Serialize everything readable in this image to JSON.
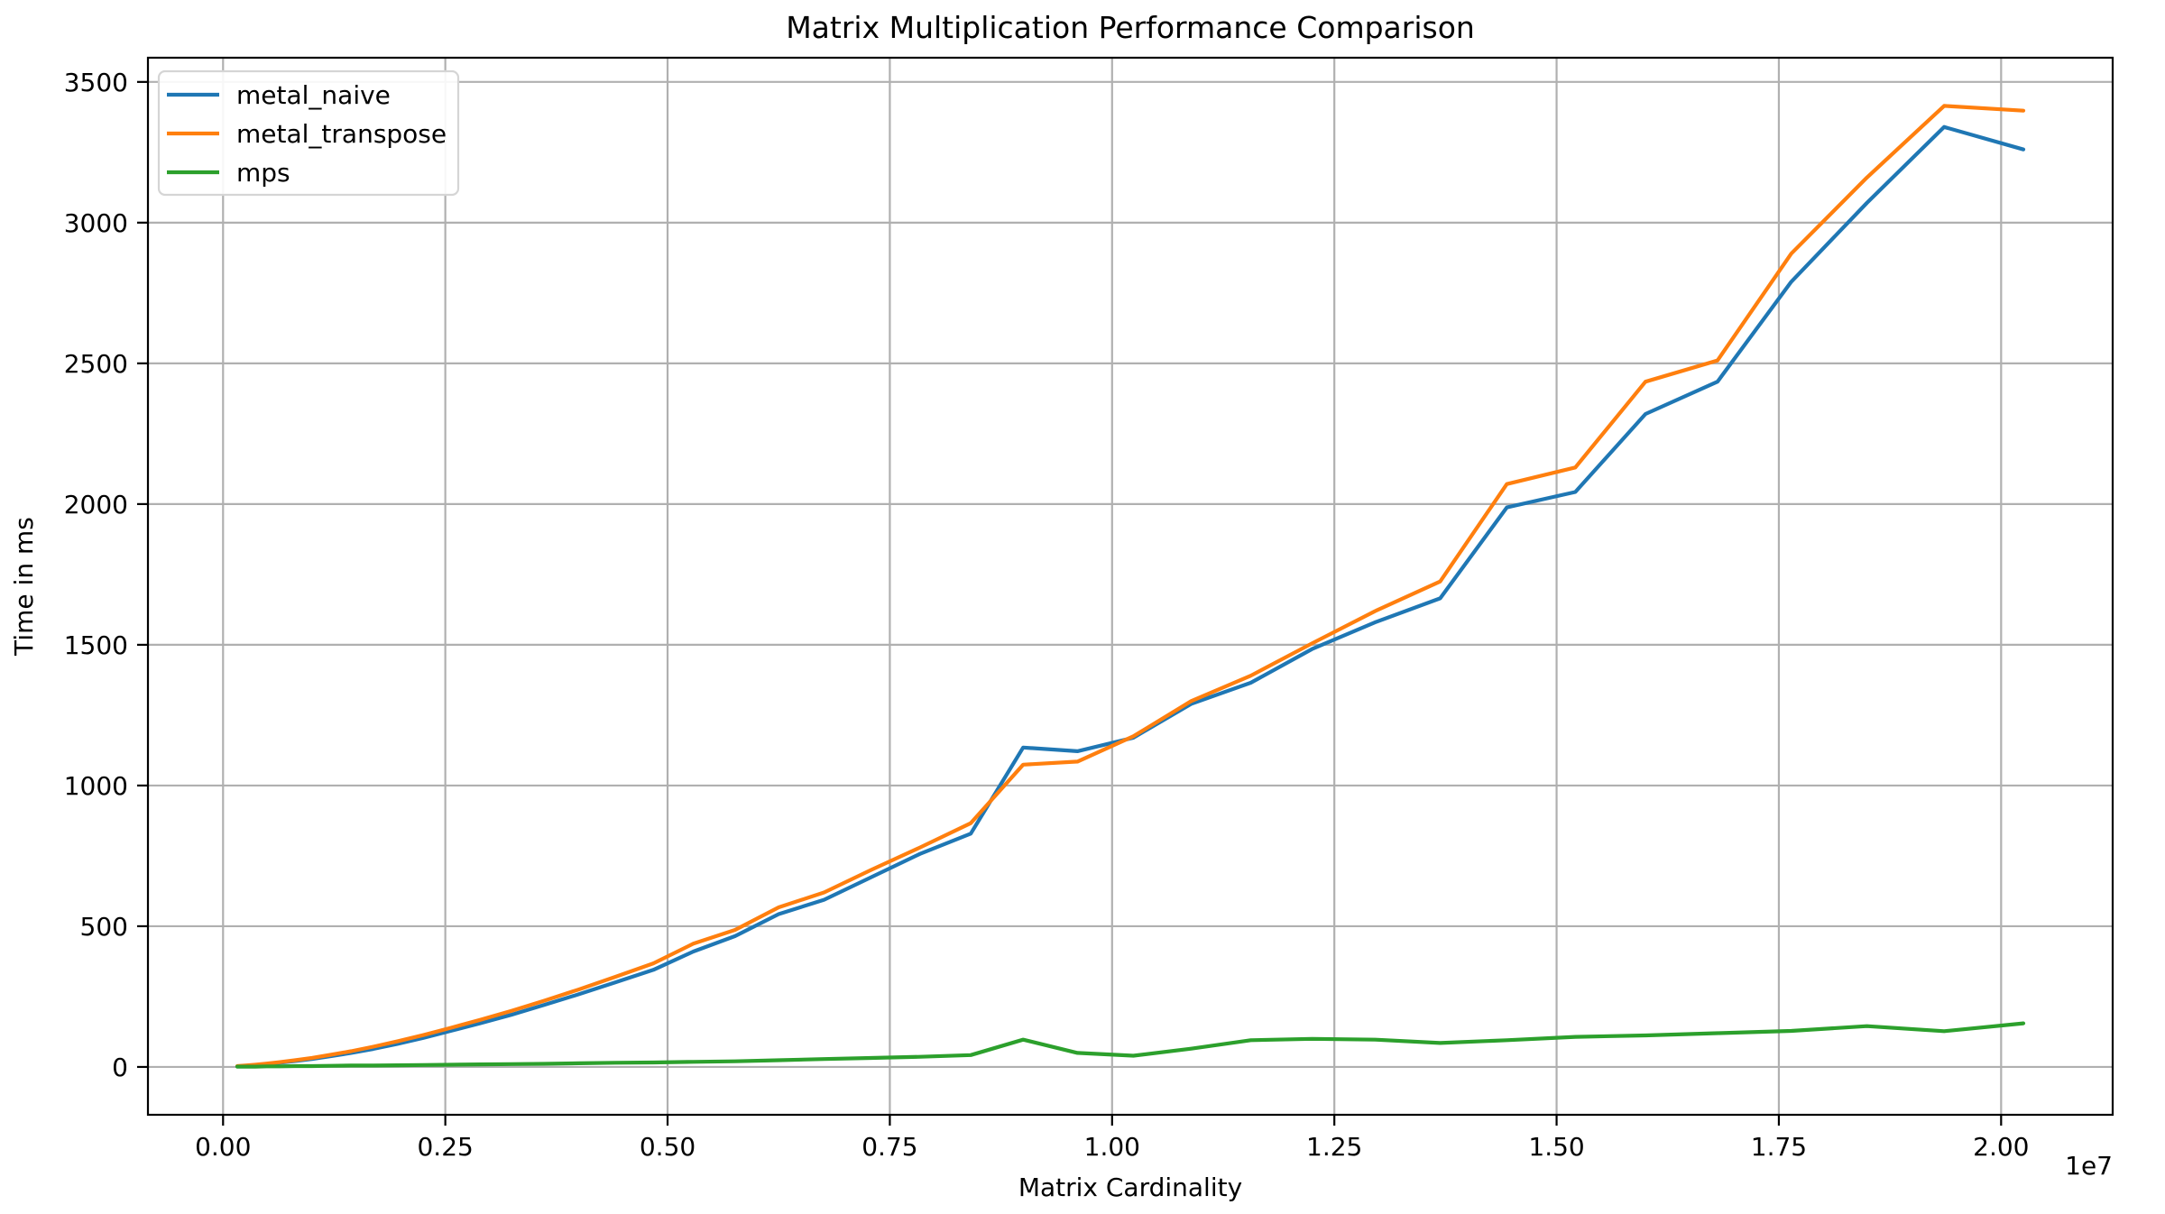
{
  "chart_data": {
    "type": "line",
    "title": "Matrix Multiplication Performance Comparison",
    "xlabel": "Matrix Cardinality",
    "ylabel": "Time in ms",
    "x_offset_label": "1e7",
    "grid": true,
    "legend_position": "upper left",
    "xlim": [
      -845000,
      21255000
    ],
    "ylim": [
      -170,
      3586
    ],
    "x_ticks": [
      0,
      2500000,
      5000000,
      7500000,
      10000000,
      12500000,
      15000000,
      17500000,
      20000000
    ],
    "x_tick_labels": [
      "0.00",
      "0.25",
      "0.50",
      "0.75",
      "1.00",
      "1.25",
      "1.50",
      "1.75",
      "2.00"
    ],
    "y_ticks": [
      0,
      500,
      1000,
      1500,
      2000,
      2500,
      3000,
      3500
    ],
    "y_tick_labels": [
      "0",
      "500",
      "1000",
      "1500",
      "2000",
      "2500",
      "3000",
      "3500"
    ],
    "x": [
      160000,
      250000,
      360000,
      490000,
      640000,
      810000,
      1000000,
      1210000,
      1440000,
      1690000,
      1960000,
      2250000,
      2560000,
      2890000,
      3240000,
      3610000,
      4000000,
      4410000,
      4840000,
      5290000,
      5760000,
      6250000,
      6760000,
      7290000,
      7840000,
      8410000,
      9000000,
      9610000,
      10240000,
      10890000,
      11560000,
      12250000,
      12960000,
      13690000,
      14440000,
      15210000,
      16000000,
      16810000,
      17640000,
      18490000,
      19360000,
      20250000
    ],
    "series": [
      {
        "name": "metal_naive",
        "color": "#1f77b4",
        "values": [
          2,
          4,
          7,
          10,
          15,
          21,
          28,
          38,
          50,
          64,
          82,
          103,
          128,
          155,
          185,
          220,
          258,
          300,
          345,
          410,
          465,
          543,
          594,
          674,
          757,
          829,
          1135,
          1122,
          1170,
          1290,
          1365,
          1485,
          1580,
          1665,
          1988,
          2043,
          2320,
          2435,
          2790,
          3070,
          3340,
          3260
        ]
      },
      {
        "name": "metal_transpose",
        "color": "#ff7f0e",
        "values": [
          3,
          5,
          8,
          12,
          17,
          24,
          32,
          43,
          56,
          72,
          91,
          113,
          139,
          167,
          199,
          235,
          275,
          320,
          368,
          438,
          487,
          567,
          620,
          700,
          780,
          866,
          1074,
          1085,
          1175,
          1300,
          1390,
          1505,
          1620,
          1725,
          2071,
          2130,
          2435,
          2510,
          2890,
          3160,
          3415,
          3398
        ]
      },
      {
        "name": "mps",
        "color": "#2ca02c",
        "values": [
          1,
          1,
          1,
          2,
          2,
          3,
          3,
          4,
          5,
          5,
          6,
          7,
          8,
          9,
          10,
          11,
          13,
          15,
          16,
          18,
          20,
          24,
          28,
          32,
          36,
          42,
          97,
          50,
          40,
          65,
          95,
          100,
          97,
          85,
          95,
          107,
          112,
          120,
          128,
          145,
          127,
          155
        ]
      }
    ],
    "style": {
      "grid_color": "#b0b0b0",
      "spine_color": "#000000",
      "background": "#ffffff",
      "legend_border": "#d5d5d5",
      "legend_background": "#ffffff"
    }
  }
}
